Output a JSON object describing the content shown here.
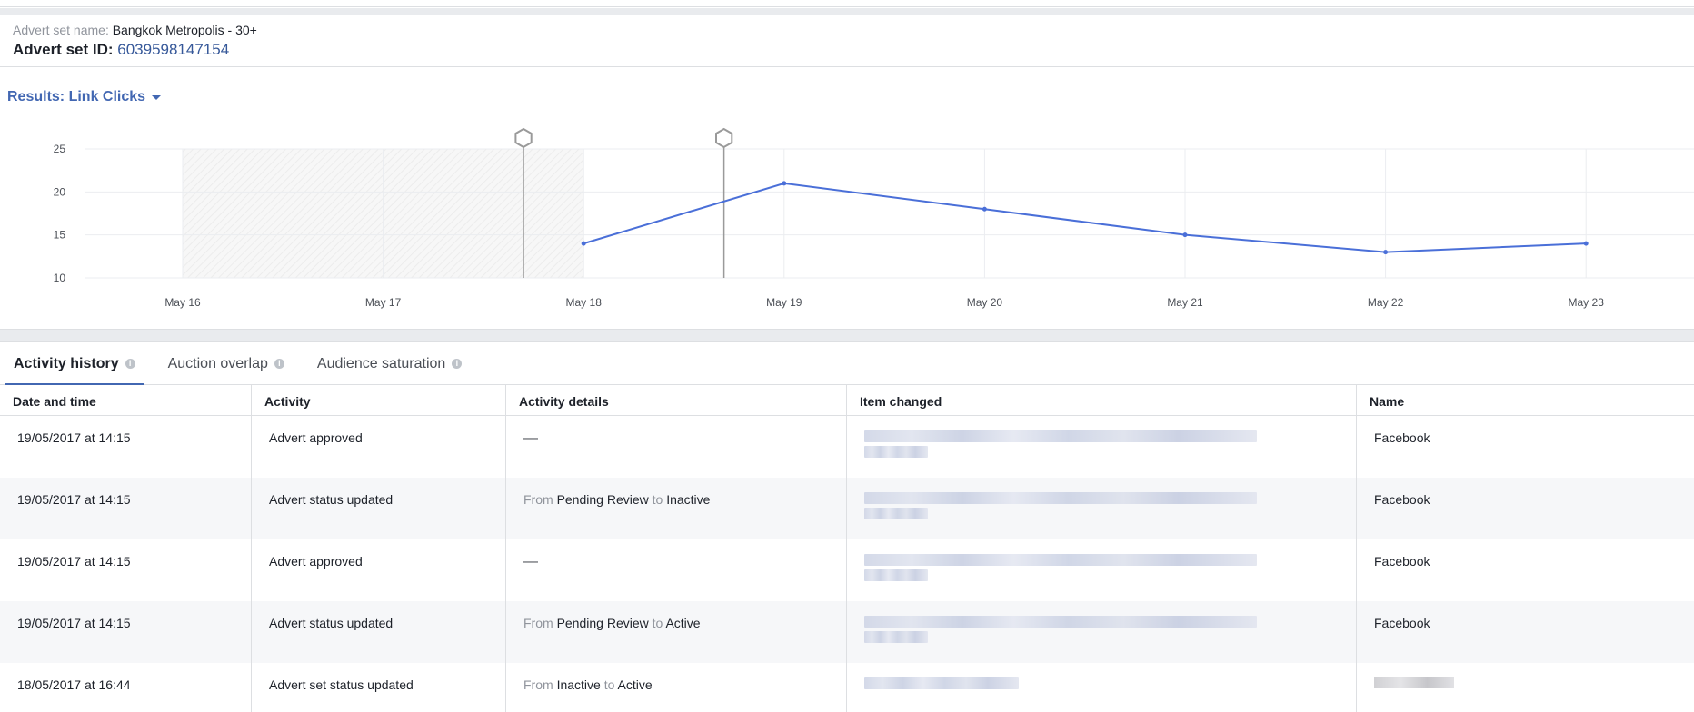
{
  "header": {
    "name_label": "Advert set name:",
    "name_value": "Bangkok Metropolis - 30+",
    "id_label": "Advert set ID:",
    "id_value": "6039598147154"
  },
  "results_dropdown": {
    "label": "Results: Link Clicks"
  },
  "chart_data": {
    "type": "line",
    "x": [
      "May 16",
      "May 17",
      "May 18",
      "May 19",
      "May 20",
      "May 21",
      "May 22",
      "May 23"
    ],
    "series": [
      {
        "values": [
          null,
          null,
          14,
          21,
          18,
          15,
          13,
          14
        ]
      }
    ],
    "yticks": [
      "25",
      "20",
      "15",
      "10"
    ],
    "ylim": [
      10,
      25
    ],
    "shaded_range": [
      "May 16",
      "May 18"
    ],
    "event_markers": [
      "May 17",
      "May 18"
    ],
    "line_color": "#4a6fd8",
    "grid": true
  },
  "tabs": [
    {
      "label": "Activity history",
      "active": true
    },
    {
      "label": "Auction overlap",
      "active": false
    },
    {
      "label": "Audience saturation",
      "active": false
    }
  ],
  "table": {
    "columns": [
      "Date and time",
      "Activity",
      "Activity details",
      "Item changed",
      "Name"
    ],
    "rows": [
      {
        "datetime": "19/05/2017 at 14:15",
        "activity": "Advert approved",
        "details": {
          "dash": "—"
        },
        "name": "Facebook"
      },
      {
        "datetime": "19/05/2017 at 14:15",
        "activity": "Advert status updated",
        "details": {
          "from_word": "From",
          "from": "Pending Review",
          "to_word": "to",
          "to": "Inactive"
        },
        "name": "Facebook"
      },
      {
        "datetime": "19/05/2017 at 14:15",
        "activity": "Advert approved",
        "details": {
          "dash": "—"
        },
        "name": "Facebook"
      },
      {
        "datetime": "19/05/2017 at 14:15",
        "activity": "Advert status updated",
        "details": {
          "from_word": "From",
          "from": "Pending Review",
          "to_word": "to",
          "to": "Active"
        },
        "name": "Facebook"
      },
      {
        "datetime": "18/05/2017 at 16:44",
        "activity": "Advert set status updated",
        "details": {
          "from_word": "From",
          "from": "Inactive",
          "to_word": "to",
          "to": "Active"
        },
        "name": ""
      }
    ]
  }
}
